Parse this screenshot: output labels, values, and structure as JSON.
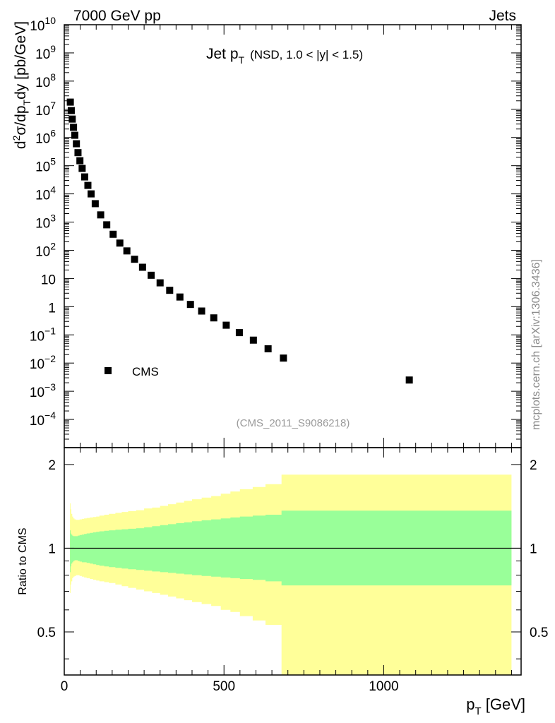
{
  "header": {
    "left": "7000 GeV pp",
    "right": "Jets"
  },
  "side_label": "mcplots.cern.ch [arXiv:1306.3436]",
  "watermark": "(CMS_2011_S9086218)",
  "chart_data": [
    {
      "type": "scatter",
      "panel": "main",
      "title": {
        "main": "Jet p",
        "sub": "T",
        "qualifier": "(NSD, 1.0 < |y| < 1.5)"
      },
      "xlabel": {
        "main": "p",
        "sub": "T",
        "unit": " [GeV]"
      },
      "ylabel": {
        "prefix": "d",
        "sup": "2",
        "mid": "σ/dp",
        "sub": "T",
        "suffix": "dy [pb/GeV]"
      },
      "yscale": "log",
      "xlim": [
        0,
        1430
      ],
      "ylim": [
        1e-05,
        10000000000
      ],
      "y_ticks": [
        {
          "v": 0.0001,
          "b": "10",
          "e": "−4"
        },
        {
          "v": 0.001,
          "b": "10",
          "e": "−3"
        },
        {
          "v": 0.01,
          "b": "10",
          "e": "−2"
        },
        {
          "v": 0.1,
          "b": "10",
          "e": "−1"
        },
        {
          "v": 1,
          "b": "1",
          "e": ""
        },
        {
          "v": 10,
          "b": "10",
          "e": ""
        },
        {
          "v": 100,
          "b": "10",
          "e": "2"
        },
        {
          "v": 1000,
          "b": "10",
          "e": "3"
        },
        {
          "v": 10000,
          "b": "10",
          "e": "4"
        },
        {
          "v": 100000,
          "b": "10",
          "e": "5"
        },
        {
          "v": 1000000,
          "b": "10",
          "e": "6"
        },
        {
          "v": 10000000,
          "b": "10",
          "e": "7"
        },
        {
          "v": 100000000,
          "b": "10",
          "e": "8"
        },
        {
          "v": 1000000000,
          "b": "10",
          "e": "9"
        },
        {
          "v": 10000000000,
          "b": "10",
          "e": "10"
        }
      ],
      "legend": {
        "entries": [
          "CMS"
        ],
        "position": "lower-left"
      },
      "series": [
        {
          "name": "CMS",
          "x": [
            19,
            22,
            25,
            29,
            33,
            38,
            43,
            49,
            56,
            64,
            74,
            84,
            97,
            114,
            133,
            153,
            174,
            196,
            220,
            245,
            272,
            300,
            330,
            362,
            395,
            430,
            468,
            507,
            548,
            592,
            638,
            686,
            1080
          ],
          "y": [
            18000000,
            9000000,
            4500000,
            2300000,
            1200000,
            600000,
            290000,
            150000,
            80000,
            40000,
            20000,
            10000,
            4500,
            1800,
            800,
            370,
            180,
            95,
            48,
            25,
            13,
            7,
            3.8,
            2.2,
            1.2,
            0.7,
            0.4,
            0.22,
            0.12,
            0.065,
            0.032,
            0.015,
            0.0025
          ]
        }
      ]
    },
    {
      "type": "area",
      "panel": "ratio",
      "ylabel": "Ratio to CMS",
      "yscale": "log",
      "xlim": [
        0,
        1430
      ],
      "ylim": [
        0.35,
        2.3
      ],
      "x_ticks": [
        0,
        500,
        1000
      ],
      "y_ticks": [
        0.5,
        1,
        2
      ],
      "reference_line": 1,
      "bands": [
        {
          "name": "outer uncertainty",
          "color": "#ffff99",
          "edges": [
            18,
            20,
            22,
            25,
            28,
            32,
            37,
            42,
            48,
            55,
            62,
            70,
            80,
            90,
            100,
            110,
            125,
            140,
            160,
            180,
            200,
            225,
            250,
            275,
            300,
            325,
            350,
            375,
            400,
            430,
            460,
            490,
            520,
            550,
            590,
            630,
            680,
            750,
            800,
            850,
            900,
            1000,
            1400
          ],
          "lo": [
            0.69,
            0.74,
            0.76,
            0.78,
            0.79,
            0.795,
            0.8,
            0.8,
            0.795,
            0.79,
            0.785,
            0.78,
            0.775,
            0.77,
            0.765,
            0.76,
            0.755,
            0.75,
            0.74,
            0.73,
            0.72,
            0.71,
            0.7,
            0.69,
            0.68,
            0.67,
            0.66,
            0.65,
            0.64,
            0.63,
            0.62,
            0.6,
            0.59,
            0.57,
            0.55,
            0.53,
            0.35,
            0.35,
            0.35,
            0.35,
            0.35,
            0.35
          ],
          "hi": [
            1.45,
            1.38,
            1.33,
            1.3,
            1.28,
            1.27,
            1.265,
            1.265,
            1.27,
            1.275,
            1.28,
            1.285,
            1.29,
            1.295,
            1.3,
            1.31,
            1.32,
            1.33,
            1.34,
            1.35,
            1.36,
            1.37,
            1.39,
            1.4,
            1.42,
            1.44,
            1.46,
            1.48,
            1.5,
            1.52,
            1.54,
            1.57,
            1.6,
            1.63,
            1.66,
            1.7,
            1.84,
            1.84,
            1.84,
            1.84,
            1.84,
            1.84
          ]
        },
        {
          "name": "inner uncertainty",
          "color": "#99ff99",
          "edges": [
            18,
            20,
            22,
            25,
            28,
            32,
            37,
            42,
            48,
            55,
            62,
            70,
            80,
            90,
            100,
            110,
            125,
            140,
            160,
            180,
            200,
            225,
            250,
            275,
            300,
            325,
            350,
            375,
            400,
            430,
            460,
            490,
            520,
            550,
            590,
            630,
            680,
            750,
            800,
            850,
            900,
            1000,
            1400
          ],
          "lo": [
            0.82,
            0.86,
            0.88,
            0.89,
            0.9,
            0.905,
            0.905,
            0.9,
            0.895,
            0.89,
            0.89,
            0.885,
            0.88,
            0.875,
            0.87,
            0.865,
            0.86,
            0.855,
            0.85,
            0.845,
            0.84,
            0.835,
            0.83,
            0.825,
            0.82,
            0.815,
            0.81,
            0.805,
            0.8,
            0.795,
            0.79,
            0.785,
            0.78,
            0.775,
            0.77,
            0.76,
            0.735,
            0.735,
            0.735,
            0.735,
            0.735,
            0.735
          ],
          "hi": [
            1.16,
            1.13,
            1.12,
            1.11,
            1.105,
            1.105,
            1.105,
            1.11,
            1.115,
            1.12,
            1.125,
            1.13,
            1.135,
            1.14,
            1.145,
            1.15,
            1.155,
            1.16,
            1.165,
            1.17,
            1.175,
            1.18,
            1.19,
            1.2,
            1.21,
            1.22,
            1.23,
            1.24,
            1.25,
            1.26,
            1.27,
            1.28,
            1.29,
            1.3,
            1.31,
            1.32,
            1.365,
            1.365,
            1.365,
            1.365,
            1.365,
            1.365
          ]
        }
      ]
    }
  ]
}
